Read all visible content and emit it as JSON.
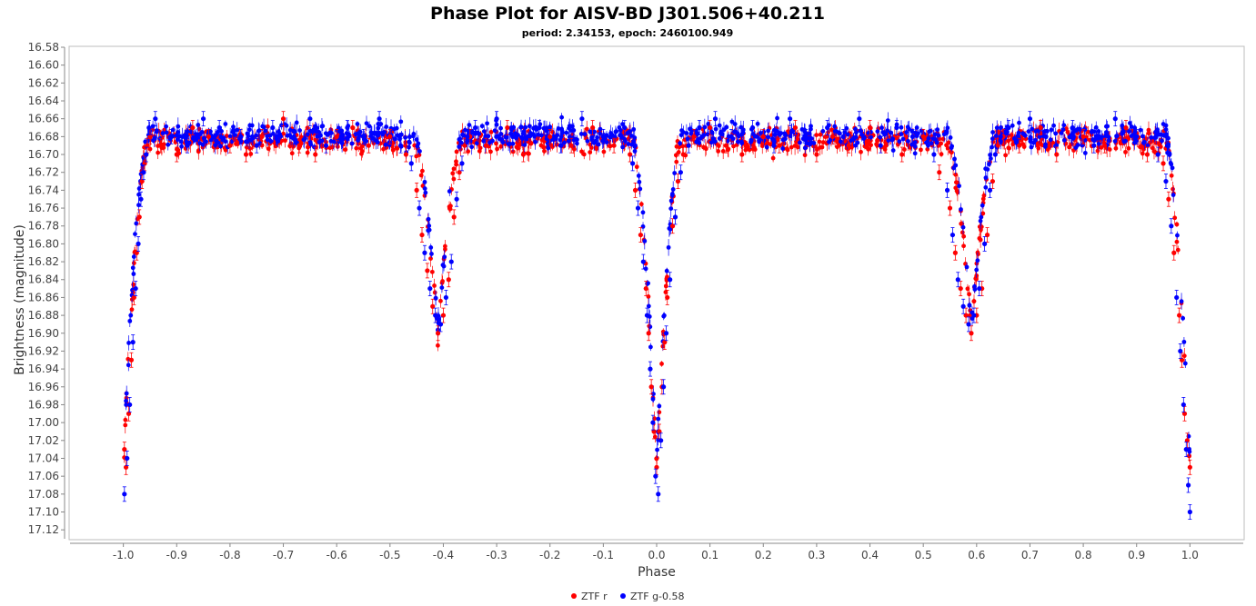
{
  "chart_data": {
    "type": "scatter",
    "title": "Phase Plot for AISV-BD J301.506+40.211",
    "subtitle": "period: 2.34153, epoch: 2460100.949",
    "xlabel": "Phase",
    "ylabel": "Brightness (magnitude)",
    "xlim": [
      -1.1,
      1.1
    ],
    "ylim": [
      16.58,
      17.13
    ],
    "y_inverted": true,
    "grid": false,
    "x_ticks": [
      -1.0,
      -0.9,
      -0.8,
      -0.7,
      -0.6,
      -0.5,
      -0.4,
      -0.3,
      -0.2,
      -0.1,
      0.0,
      0.1,
      0.2,
      0.3,
      0.4,
      0.5,
      0.6,
      0.7,
      0.8,
      0.9,
      1.0
    ],
    "x_tick_labels": [
      "-1.0",
      "-0.9",
      "-0.8",
      "-0.7",
      "-0.6",
      "-0.5",
      "-0.4",
      "-0.3",
      "-0.2",
      "-0.1",
      "0.0",
      "0.1",
      "0.2",
      "0.3",
      "0.4",
      "0.5",
      "0.6",
      "0.7",
      "0.8",
      "0.9",
      "1.0"
    ],
    "y_ticks": [
      16.58,
      16.6,
      16.62,
      16.64,
      16.66,
      16.68,
      16.7,
      16.72,
      16.74,
      16.76,
      16.78,
      16.8,
      16.82,
      16.84,
      16.86,
      16.88,
      16.9,
      16.92,
      16.94,
      16.96,
      16.98,
      17.0,
      17.02,
      17.04,
      17.06,
      17.08,
      17.1,
      17.12
    ],
    "y_tick_labels": [
      "16.58",
      "16.60",
      "16.62",
      "16.64",
      "16.66",
      "16.68",
      "16.70",
      "16.72",
      "16.74",
      "16.76",
      "16.78",
      "16.80",
      "16.82",
      "16.84",
      "16.86",
      "16.88",
      "16.90",
      "16.92",
      "16.94",
      "16.96",
      "16.98",
      "17.00",
      "17.02",
      "17.04",
      "17.06",
      "17.08",
      "17.10",
      "17.12"
    ],
    "legend_position": "bottom-center",
    "light_curve_model": {
      "baseline_mag": 16.685,
      "primary_eclipse": {
        "phase": 0.0,
        "depth_mag": 17.05,
        "half_width": 0.045
      },
      "secondary_eclipse": {
        "phase": 0.59,
        "depth_mag": 16.9,
        "half_width": 0.045
      }
    },
    "series": [
      {
        "name": "ZTF r",
        "color": "#ff0000",
        "x": [
          -0.998,
          -0.995,
          -0.99,
          -0.985,
          -0.98,
          -0.975,
          -0.97,
          -0.965,
          -0.96,
          -0.955,
          -0.95,
          -0.93,
          -0.9,
          -0.87,
          -0.84,
          -0.8,
          -0.77,
          -0.74,
          -0.7,
          -0.67,
          -0.64,
          -0.6,
          -0.57,
          -0.54,
          -0.5,
          -0.47,
          -0.45,
          -0.44,
          -0.43,
          -0.42,
          -0.41,
          -0.4,
          -0.39,
          -0.38,
          -0.37,
          -0.36,
          -0.35,
          -0.32,
          -0.28,
          -0.25,
          -0.2,
          -0.16,
          -0.12,
          -0.08,
          -0.05,
          -0.04,
          -0.03,
          -0.02,
          -0.015,
          -0.01,
          -0.005,
          0.0,
          0.005,
          0.01,
          0.015,
          0.02,
          0.03,
          0.04,
          0.05,
          0.07,
          0.1,
          0.13,
          0.16,
          0.2,
          0.23,
          0.26,
          0.3,
          0.33,
          0.36,
          0.4,
          0.43,
          0.46,
          0.5,
          0.53,
          0.55,
          0.56,
          0.57,
          0.58,
          0.59,
          0.6,
          0.61,
          0.62,
          0.63,
          0.64,
          0.65,
          0.68,
          0.72,
          0.75,
          0.8,
          0.84,
          0.88,
          0.92,
          0.95,
          0.96,
          0.97,
          0.98,
          0.985,
          0.99,
          0.995,
          1.0
        ],
        "y": [
          17.03,
          17.05,
          16.99,
          16.93,
          16.86,
          16.81,
          16.77,
          16.73,
          16.71,
          16.69,
          16.68,
          16.69,
          16.7,
          16.67,
          16.68,
          16.69,
          16.7,
          16.68,
          16.66,
          16.69,
          16.7,
          16.68,
          16.67,
          16.69,
          16.68,
          16.7,
          16.74,
          16.79,
          16.83,
          16.87,
          16.9,
          16.88,
          16.84,
          16.77,
          16.72,
          16.69,
          16.68,
          16.69,
          16.67,
          16.7,
          16.68,
          16.69,
          16.67,
          16.69,
          16.7,
          16.74,
          16.79,
          16.85,
          16.9,
          16.96,
          17.01,
          17.05,
          17.01,
          16.96,
          16.91,
          16.86,
          16.78,
          16.73,
          16.7,
          16.68,
          16.67,
          16.69,
          16.7,
          16.68,
          16.69,
          16.67,
          16.7,
          16.68,
          16.69,
          16.67,
          16.69,
          16.7,
          16.68,
          16.72,
          16.76,
          16.81,
          16.85,
          16.88,
          16.9,
          16.88,
          16.85,
          16.79,
          16.73,
          16.69,
          16.68,
          16.69,
          16.67,
          16.7,
          16.68,
          16.69,
          16.67,
          16.7,
          16.71,
          16.75,
          16.81,
          16.88,
          16.93,
          16.99,
          17.02,
          17.05
        ]
      },
      {
        "name": "ZTF g-0.58",
        "color": "#0000ff",
        "x": [
          -0.998,
          -0.993,
          -0.988,
          -0.982,
          -0.977,
          -0.972,
          -0.967,
          -0.962,
          -0.957,
          -0.952,
          -0.94,
          -0.91,
          -0.88,
          -0.85,
          -0.82,
          -0.78,
          -0.75,
          -0.72,
          -0.68,
          -0.65,
          -0.62,
          -0.58,
          -0.55,
          -0.52,
          -0.48,
          -0.46,
          -0.445,
          -0.435,
          -0.425,
          -0.415,
          -0.405,
          -0.395,
          -0.385,
          -0.375,
          -0.365,
          -0.355,
          -0.34,
          -0.3,
          -0.27,
          -0.22,
          -0.18,
          -0.14,
          -0.1,
          -0.06,
          -0.045,
          -0.035,
          -0.025,
          -0.018,
          -0.012,
          -0.007,
          -0.002,
          0.003,
          0.008,
          0.013,
          0.018,
          0.025,
          0.035,
          0.045,
          0.06,
          0.08,
          0.11,
          0.14,
          0.18,
          0.22,
          0.25,
          0.28,
          0.32,
          0.35,
          0.38,
          0.42,
          0.45,
          0.48,
          0.52,
          0.545,
          0.555,
          0.565,
          0.575,
          0.585,
          0.595,
          0.605,
          0.615,
          0.625,
          0.635,
          0.645,
          0.66,
          0.7,
          0.73,
          0.78,
          0.82,
          0.86,
          0.9,
          0.94,
          0.955,
          0.965,
          0.975,
          0.982,
          0.988,
          0.993,
          0.997,
          1.0
        ],
        "y": [
          17.08,
          17.04,
          16.98,
          16.91,
          16.85,
          16.8,
          16.75,
          16.72,
          16.7,
          16.67,
          16.66,
          16.68,
          16.69,
          16.66,
          16.67,
          16.68,
          16.69,
          16.67,
          16.68,
          16.66,
          16.69,
          16.67,
          16.68,
          16.66,
          16.69,
          16.71,
          16.76,
          16.81,
          16.85,
          16.88,
          16.89,
          16.86,
          16.82,
          16.75,
          16.71,
          16.68,
          16.67,
          16.66,
          16.68,
          16.67,
          16.69,
          16.66,
          16.68,
          16.67,
          16.71,
          16.76,
          16.82,
          16.88,
          16.94,
          17.0,
          17.06,
          17.08,
          17.02,
          16.96,
          16.9,
          16.84,
          16.77,
          16.72,
          16.69,
          16.67,
          16.66,
          16.68,
          16.67,
          16.69,
          16.66,
          16.68,
          16.67,
          16.68,
          16.66,
          16.69,
          16.67,
          16.68,
          16.7,
          16.74,
          16.79,
          16.84,
          16.87,
          16.89,
          16.88,
          16.85,
          16.8,
          16.74,
          16.7,
          16.68,
          16.67,
          16.66,
          16.68,
          16.67,
          16.69,
          16.66,
          16.68,
          16.7,
          16.73,
          16.78,
          16.86,
          16.92,
          16.98,
          17.03,
          17.07,
          17.1
        ]
      }
    ]
  }
}
